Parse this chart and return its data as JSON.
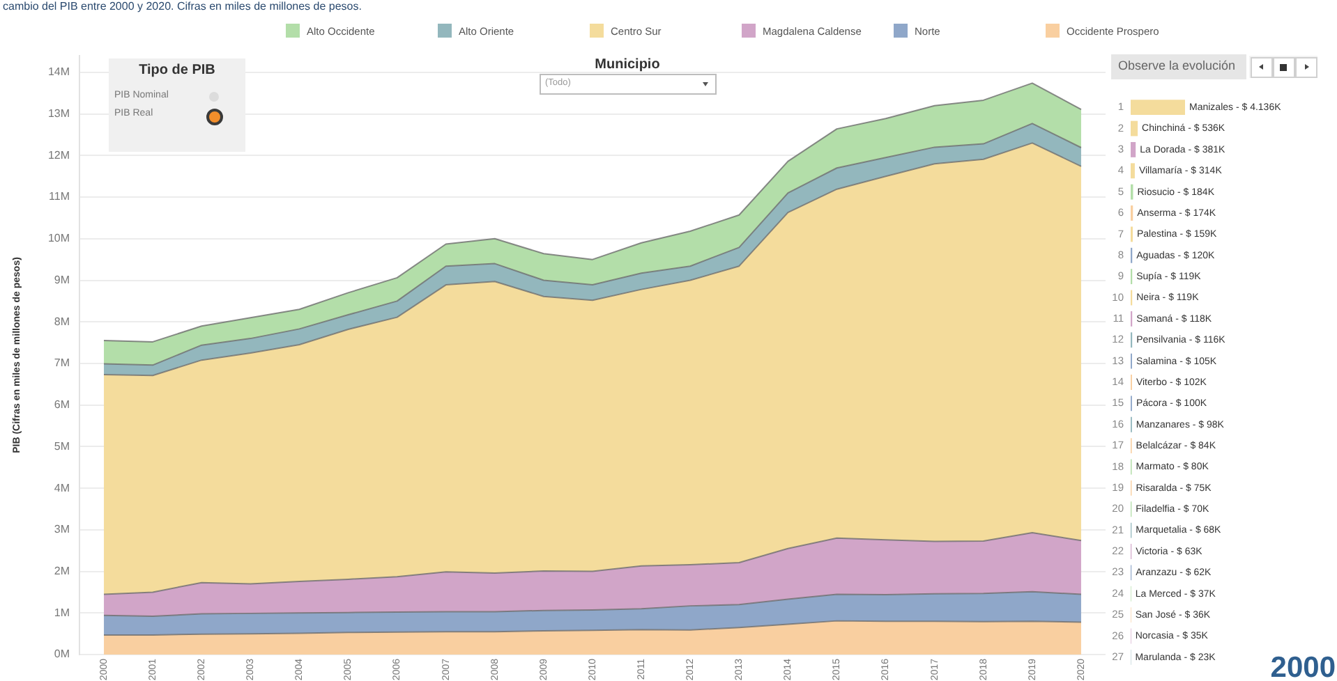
{
  "chart_data": [
    {
      "type": "area",
      "title": "cambio del PIB entre 2000 y 2020. Cifras en miles de millones de pesos.",
      "ylabel": "PIB (Cifras en miles de millones de pesos)",
      "categories": [
        "2000",
        "2001",
        "2002",
        "2003",
        "2004",
        "2005",
        "2006",
        "2007",
        "2008",
        "2009",
        "2010",
        "2011",
        "2012",
        "2013",
        "2014",
        "2015",
        "2016",
        "2017",
        "2018",
        "2019",
        "2020"
      ],
      "stacked": true,
      "series": [
        {
          "name": "Occidente Prospero",
          "color": "#f9cfa0",
          "values": [
            0.47,
            0.47,
            0.49,
            0.5,
            0.51,
            0.53,
            0.54,
            0.55,
            0.55,
            0.57,
            0.58,
            0.6,
            0.59,
            0.65,
            0.73,
            0.81,
            0.8,
            0.8,
            0.79,
            0.8,
            0.78
          ]
        },
        {
          "name": "Norte",
          "color": "#8fa7c9",
          "values": [
            0.47,
            0.45,
            0.49,
            0.49,
            0.49,
            0.48,
            0.48,
            0.48,
            0.48,
            0.49,
            0.49,
            0.5,
            0.58,
            0.55,
            0.6,
            0.64,
            0.64,
            0.66,
            0.68,
            0.71,
            0.67
          ]
        },
        {
          "name": "Magdalena Caldense",
          "color": "#d1a5c8",
          "values": [
            0.51,
            0.58,
            0.75,
            0.71,
            0.76,
            0.8,
            0.85,
            0.96,
            0.93,
            0.95,
            0.93,
            1.03,
            0.99,
            1.01,
            1.22,
            1.35,
            1.32,
            1.26,
            1.26,
            1.42,
            1.29
          ]
        },
        {
          "name": "Centro Sur",
          "color": "#f4dc9c",
          "values": [
            5.28,
            5.21,
            5.35,
            5.55,
            5.69,
            6.01,
            6.24,
            6.9,
            7.01,
            6.6,
            6.52,
            6.65,
            6.84,
            7.13,
            8.08,
            8.39,
            8.74,
            9.08,
            9.18,
            9.37,
            9.0
          ]
        },
        {
          "name": "Alto Oriente",
          "color": "#93b7bd",
          "values": [
            0.26,
            0.25,
            0.36,
            0.35,
            0.38,
            0.35,
            0.39,
            0.45,
            0.43,
            0.39,
            0.37,
            0.39,
            0.34,
            0.45,
            0.47,
            0.51,
            0.45,
            0.4,
            0.37,
            0.47,
            0.45
          ]
        },
        {
          "name": "Alto Occidente",
          "color": "#b3dea9",
          "values": [
            0.56,
            0.56,
            0.46,
            0.5,
            0.47,
            0.53,
            0.56,
            0.53,
            0.6,
            0.64,
            0.61,
            0.73,
            0.84,
            0.78,
            0.76,
            0.94,
            0.94,
            1.0,
            1.05,
            0.97,
            0.92
          ]
        }
      ],
      "ylim": [
        0,
        14.4
      ],
      "yticks": [
        {
          "value": 0,
          "label": "0M"
        },
        {
          "value": 1,
          "label": "1M"
        },
        {
          "value": 2,
          "label": "2M"
        },
        {
          "value": 3,
          "label": "3M"
        },
        {
          "value": 4,
          "label": "4M"
        },
        {
          "value": 5,
          "label": "5M"
        },
        {
          "value": 6,
          "label": "6M"
        },
        {
          "value": 7,
          "label": "7M"
        },
        {
          "value": 8,
          "label": "8M"
        },
        {
          "value": 9,
          "label": "9M"
        },
        {
          "value": 10,
          "label": "10M"
        },
        {
          "value": 11,
          "label": "11M"
        },
        {
          "value": 12,
          "label": "12M"
        },
        {
          "value": 13,
          "label": "13M"
        },
        {
          "value": 14,
          "label": "14M"
        }
      ],
      "grid": "y",
      "legend": "top",
      "annotations": [
        "Tipo de PIB",
        "PIB Nominal",
        "PIB Real",
        "Municipio",
        "(Todo)"
      ]
    },
    {
      "type": "bar",
      "orientation": "horizontal",
      "title": "Observe la evolución",
      "categories": [
        "1",
        "2",
        "3",
        "4",
        "5",
        "6",
        "7",
        "8",
        "9",
        "10",
        "11",
        "12",
        "13",
        "14",
        "15",
        "16",
        "17",
        "18",
        "19",
        "20",
        "21",
        "22",
        "23",
        "24",
        "25",
        "26",
        "27"
      ],
      "values": [
        4136,
        536,
        381,
        314,
        184,
        174,
        159,
        120,
        119,
        119,
        118,
        116,
        105,
        102,
        100,
        98,
        84,
        80,
        75,
        70,
        68,
        63,
        62,
        37,
        36,
        35,
        23
      ],
      "colors": [
        "#f4dc9c",
        "#f4dc9c",
        "#d1a5c8",
        "#f4dc9c",
        "#b3dea9",
        "#f9cfa0",
        "#f4dc9c",
        "#8fa7c9",
        "#b3dea9",
        "#f4dc9c",
        "#d1a5c8",
        "#93b7bd",
        "#8fa7c9",
        "#f9cfa0",
        "#8fa7c9",
        "#93b7bd",
        "#f9cfa0",
        "#b3dea9",
        "#f9cfa0",
        "#b3dea9",
        "#93b7bd",
        "#d1a5c8",
        "#8fa7c9",
        "#b3dea9",
        "#f9cfa0",
        "#d1a5c8",
        "#93b7bd"
      ],
      "value_labels": [
        "Manizales ‐ $ 4.136K",
        "Chinchiná ‐ $ 536K",
        "La Dorada ‐ $ 381K",
        "Villamaría ‐ $ 314K",
        "Riosucio ‐ $ 184K",
        "Anserma ‐ $ 174K",
        "Palestina ‐ $ 159K",
        "Aguadas ‐ $ 120K",
        "Supía ‐ $ 119K",
        "Neira ‐ $ 119K",
        "Samaná ‐ $ 118K",
        "Pensilvania ‐ $ 116K",
        "Salamina ‐ $ 105K",
        "Viterbo ‐ $ 102K",
        "Pácora ‐ $ 100K",
        "Manzanares ‐ $ 98K",
        "Belalcázar ‐ $ 84K",
        "Marmato ‐ $ 80K",
        "Risaralda ‐ $ 75K",
        "Filadelfia ‐ $ 70K",
        "Marquetalia ‐ $ 68K",
        "Victoria ‐ $ 63K",
        "Aranzazu ‐ $ 62K",
        "La Merced ‐ $ 37K",
        "San José ‐ $ 36K",
        "Norcasia ‐ $ 35K",
        "Marulanda ‐ $ 23K"
      ],
      "tick_labels": "y",
      "annotations": [
        "2000"
      ]
    }
  ]
}
